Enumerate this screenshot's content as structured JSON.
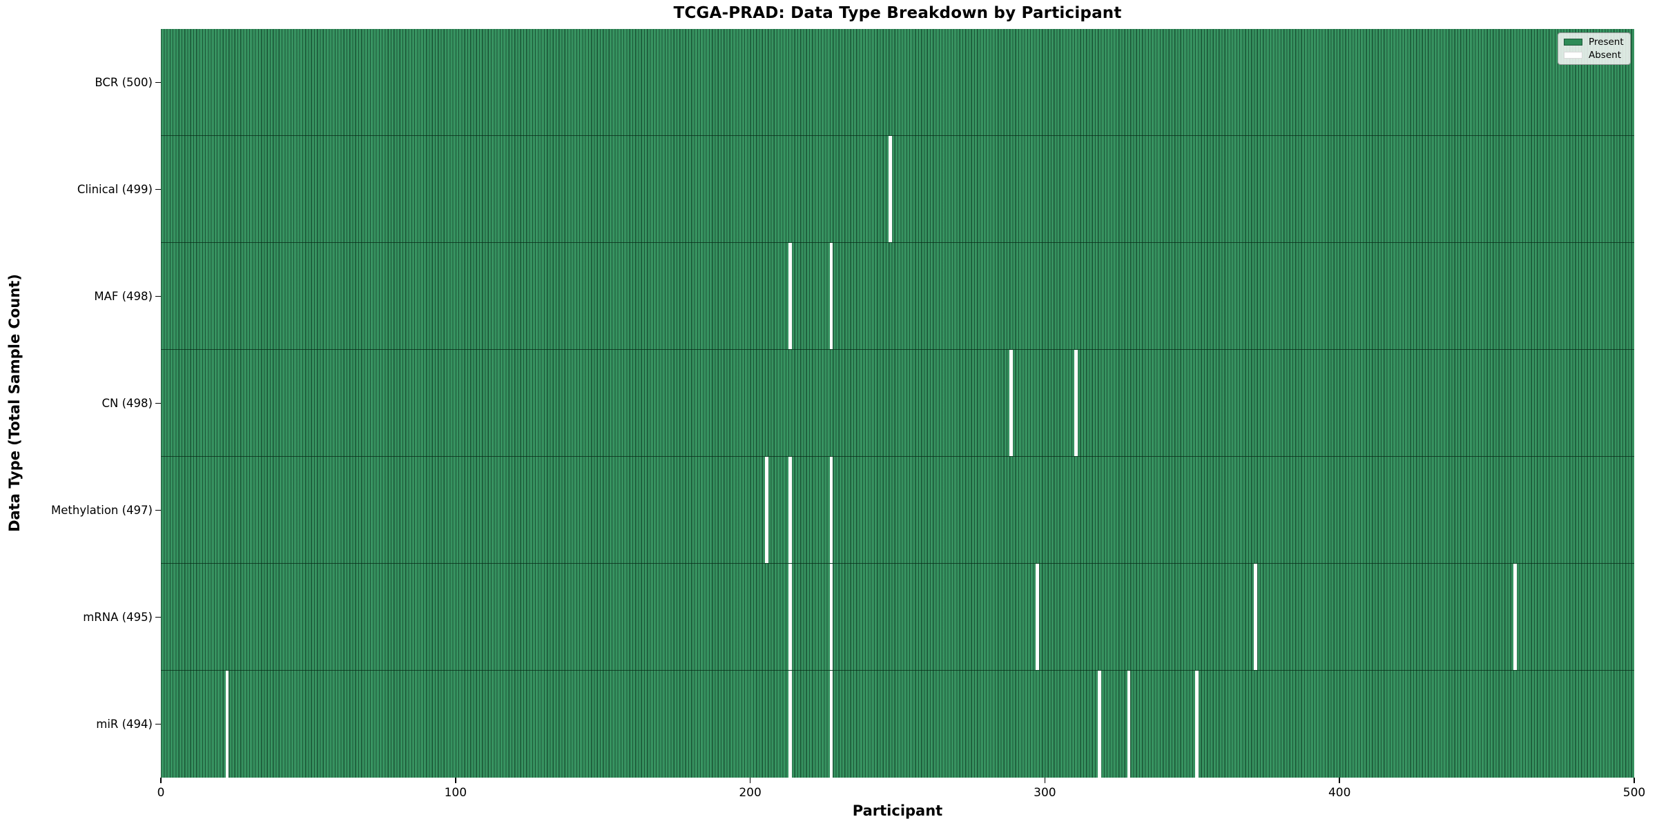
{
  "figure": {
    "title": "TCGA-PRAD: Data Type Breakdown by Participant",
    "xlabel": "Participant",
    "ylabel": "Data Type (Total Sample Count)"
  },
  "legend": {
    "items": [
      {
        "label": "Present",
        "color": "#2e8b57"
      },
      {
        "label": "Absent",
        "color": "#ffffff"
      }
    ],
    "position": "upper-right"
  },
  "chart_data": {
    "type": "heatmap",
    "title": "TCGA-PRAD: Data Type Breakdown by Participant",
    "xlabel": "Participant",
    "ylabel": "Data Type (Total Sample Count)",
    "x_range": [
      0,
      500
    ],
    "x_ticks": [
      0,
      100,
      200,
      300,
      400,
      500
    ],
    "n_participants": 500,
    "grid": false,
    "legend_position": "upper-right",
    "legend_entries": [
      "Present",
      "Absent"
    ],
    "colors": {
      "present": "#2e8b57",
      "absent": "#ffffff",
      "cell_edge": "#0a2a18"
    },
    "rows": [
      {
        "data_type": "BCR",
        "label": "BCR (500)",
        "total": 500,
        "absent_participants": []
      },
      {
        "data_type": "Clinical",
        "label": "Clinical (499)",
        "total": 499,
        "absent_participants": [
          247
        ]
      },
      {
        "data_type": "MAF",
        "label": "MAF (498)",
        "total": 498,
        "absent_participants": [
          213,
          227
        ]
      },
      {
        "data_type": "CN",
        "label": "CN (498)",
        "total": 498,
        "absent_participants": [
          288,
          310
        ]
      },
      {
        "data_type": "Methylation",
        "label": "Methylation (497)",
        "total": 497,
        "absent_participants": [
          205,
          213,
          227
        ]
      },
      {
        "data_type": "mRNA",
        "label": "mRNA (495)",
        "total": 495,
        "absent_participants": [
          213,
          227,
          297,
          371,
          459
        ]
      },
      {
        "data_type": "miR",
        "label": "miR (494)",
        "total": 494,
        "absent_participants": [
          22,
          213,
          227,
          318,
          328,
          351
        ]
      }
    ]
  }
}
